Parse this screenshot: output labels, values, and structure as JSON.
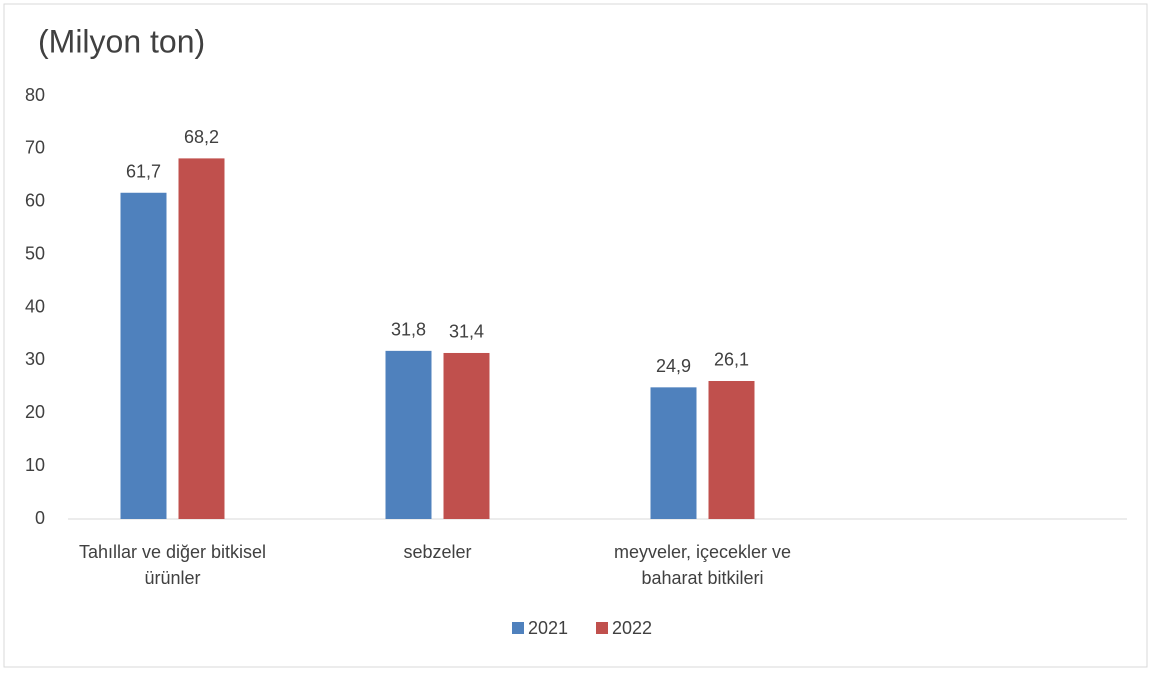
{
  "chart_data": {
    "type": "bar",
    "title": "(Milyon ton)",
    "categories": [
      "Tahıllar ve diğer bitkisel ürünler",
      "sebzeler",
      "meyveler, içecekler ve baharat bitkileri",
      null
    ],
    "series": [
      {
        "name": "2021",
        "color": "#4f81bd",
        "values": [
          61.7,
          31.8,
          24.9,
          null
        ],
        "value_labels": [
          "61,7",
          "31,8",
          "24,9",
          null
        ]
      },
      {
        "name": "2022",
        "color": "#c0504d",
        "values": [
          68.2,
          31.4,
          26.1,
          null
        ],
        "value_labels": [
          "68,2",
          "31,4",
          "26,1",
          null
        ]
      }
    ],
    "ylim": [
      0,
      80
    ],
    "yticks": [
      0,
      10,
      20,
      30,
      40,
      50,
      60,
      70,
      80
    ],
    "grid": false,
    "legend": "bottom"
  }
}
